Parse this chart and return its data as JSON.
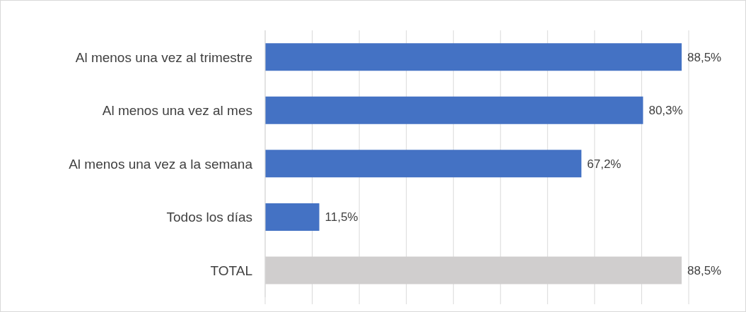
{
  "chart_data": {
    "type": "bar",
    "orientation": "horizontal",
    "categories": [
      "Al menos una vez al trimestre",
      "Al menos una vez al mes",
      "Al menos una vez a la semana",
      "Todos los días",
      "TOTAL"
    ],
    "values": [
      88.5,
      80.3,
      67.2,
      11.5,
      88.5
    ],
    "value_labels": [
      "88,5%",
      "80,3%",
      "67,2%",
      "11,5%",
      "88,5%"
    ],
    "colors": [
      "#4472c4",
      "#4472c4",
      "#4472c4",
      "#4472c4",
      "#d0cece"
    ],
    "tick_labels": "y",
    "grid": "x",
    "legend": false
  }
}
